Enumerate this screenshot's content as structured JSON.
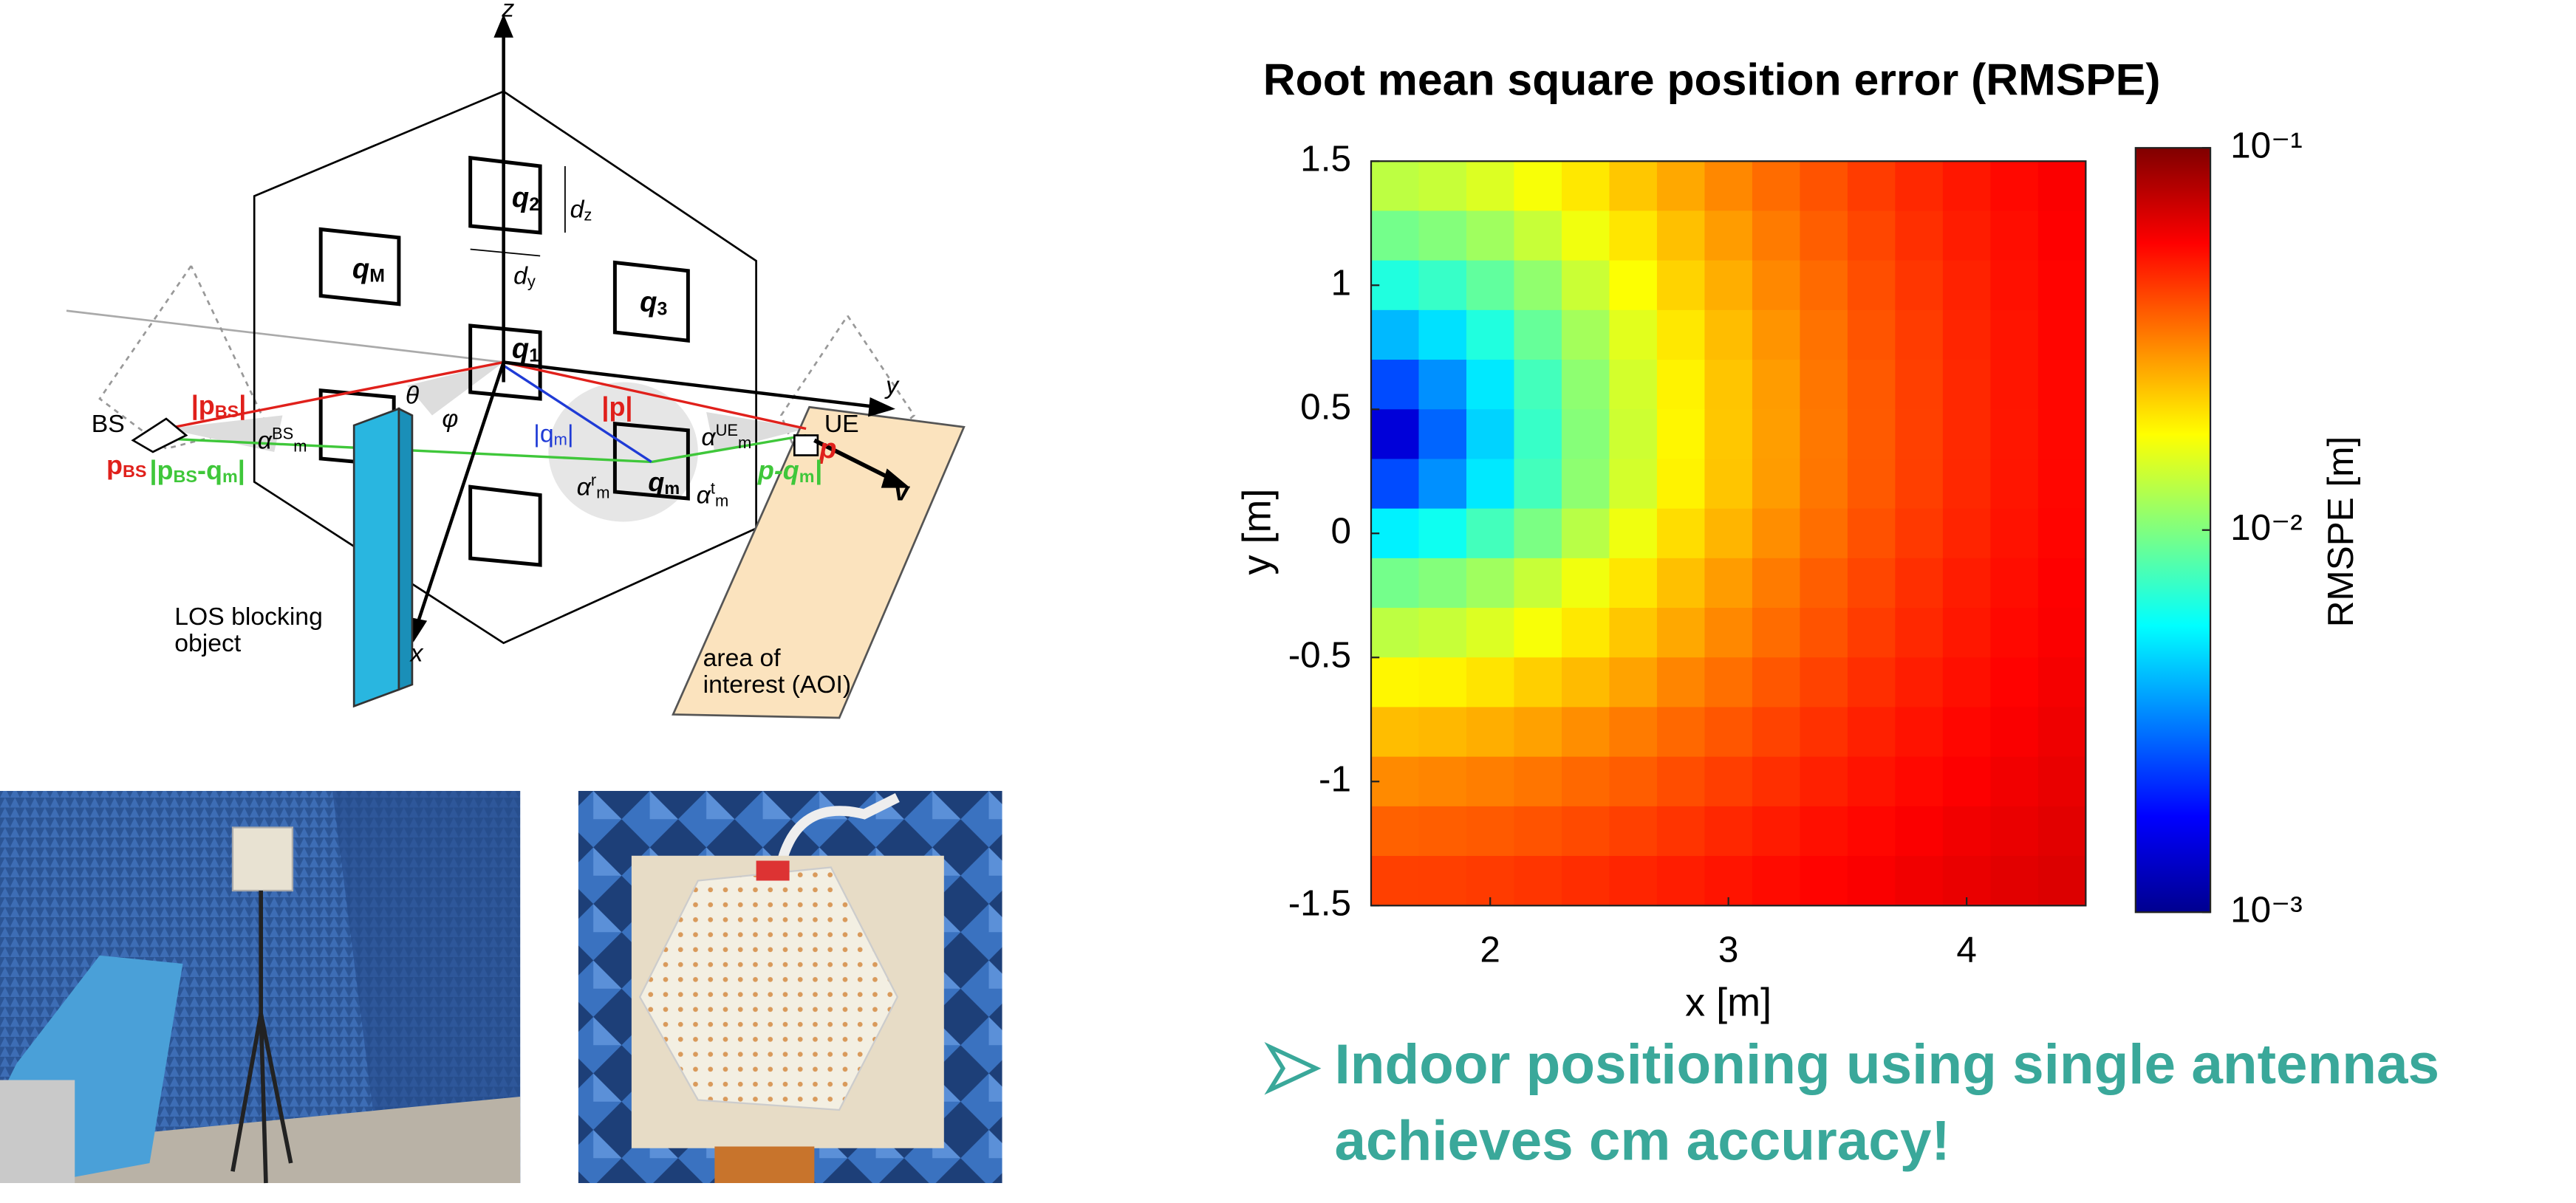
{
  "chart_data": {
    "type": "heatmap",
    "title": "Root mean square position error (RMSPE)",
    "xlabel": "x [m]",
    "ylabel": "y [m]",
    "colorbar_label": "RMSPE [m]",
    "colormap": "jet",
    "color_scale": "log",
    "x": [
      1.6,
      1.8,
      2.0,
      2.2,
      2.4,
      2.6,
      2.8,
      3.0,
      3.2,
      3.4,
      3.6,
      3.8,
      4.0,
      4.2,
      4.4
    ],
    "y": [
      1.4,
      1.2,
      1.0,
      0.8,
      0.6,
      0.4,
      0.2,
      0.0,
      -0.2,
      -0.4,
      -0.6,
      -0.8,
      -1.0,
      -1.2,
      -1.4
    ],
    "values": [
      [
        0.0132,
        0.0138,
        0.0152,
        0.0172,
        0.0197,
        0.0229,
        0.0263,
        0.0304,
        0.0346,
        0.0386,
        0.0428,
        0.047,
        0.0508,
        0.0542,
        0.0573
      ],
      [
        0.0095,
        0.0102,
        0.0116,
        0.0138,
        0.0167,
        0.0199,
        0.0236,
        0.0278,
        0.0323,
        0.0368,
        0.041,
        0.0455,
        0.0496,
        0.0531,
        0.0564
      ],
      [
        0.0065,
        0.0072,
        0.0087,
        0.0108,
        0.014,
        0.0176,
        0.0217,
        0.0256,
        0.0304,
        0.0348,
        0.0396,
        0.0441,
        0.0482,
        0.0522,
        0.0556
      ],
      [
        0.0041,
        0.0049,
        0.0065,
        0.0089,
        0.0118,
        0.0156,
        0.0197,
        0.024,
        0.0288,
        0.0336,
        0.0385,
        0.0428,
        0.0475,
        0.0514,
        0.055
      ],
      [
        0.0025,
        0.0034,
        0.0051,
        0.0076,
        0.0107,
        0.0146,
        0.0188,
        0.0231,
        0.0278,
        0.033,
        0.0377,
        0.0424,
        0.047,
        0.0511,
        0.0547
      ],
      [
        0.0015,
        0.0028,
        0.0046,
        0.0072,
        0.0103,
        0.0142,
        0.0184,
        0.0229,
        0.0275,
        0.0327,
        0.0375,
        0.0421,
        0.0468,
        0.051,
        0.0546
      ],
      [
        0.0025,
        0.0034,
        0.0051,
        0.0076,
        0.0107,
        0.0146,
        0.0188,
        0.0231,
        0.0278,
        0.033,
        0.0377,
        0.0424,
        0.047,
        0.0511,
        0.0547
      ],
      [
        0.0053,
        0.006,
        0.0076,
        0.0098,
        0.0129,
        0.0166,
        0.0207,
        0.0248,
        0.0296,
        0.0342,
        0.039,
        0.0434,
        0.0478,
        0.0518,
        0.0553
      ],
      [
        0.0095,
        0.0102,
        0.0116,
        0.0138,
        0.0167,
        0.0199,
        0.0236,
        0.0278,
        0.0323,
        0.0368,
        0.041,
        0.0455,
        0.0496,
        0.0531,
        0.0564
      ],
      [
        0.0132,
        0.0138,
        0.0152,
        0.0172,
        0.0197,
        0.0229,
        0.0263,
        0.0304,
        0.0346,
        0.0386,
        0.0428,
        0.047,
        0.0508,
        0.0542,
        0.0573
      ],
      [
        0.0184,
        0.0188,
        0.0201,
        0.0221,
        0.0242,
        0.027,
        0.0308,
        0.0341,
        0.038,
        0.0417,
        0.0457,
        0.0493,
        0.0526,
        0.0558,
        0.0588
      ],
      [
        0.024,
        0.0245,
        0.0256,
        0.0272,
        0.0296,
        0.0323,
        0.0351,
        0.0382,
        0.0415,
        0.045,
        0.0487,
        0.0518,
        0.0547,
        0.0575,
        0.0604
      ],
      [
        0.0302,
        0.0308,
        0.0318,
        0.0332,
        0.0351,
        0.037,
        0.0398,
        0.0426,
        0.0455,
        0.0487,
        0.0517,
        0.0542,
        0.0568,
        0.0595,
        0.062
      ],
      [
        0.0363,
        0.0368,
        0.0375,
        0.0386,
        0.0403,
        0.0421,
        0.0445,
        0.0472,
        0.0498,
        0.0526,
        0.0547,
        0.0572,
        0.0597,
        0.0618,
        0.064
      ],
      [
        0.0421,
        0.0424,
        0.0431,
        0.0443,
        0.0459,
        0.0475,
        0.0493,
        0.0514,
        0.0536,
        0.0556,
        0.0576,
        0.0598,
        0.0618,
        0.064,
        0.066
      ]
    ],
    "xlim": [
      1.5,
      4.5
    ],
    "ylim": [
      -1.5,
      1.5
    ],
    "xticks": [
      2,
      3,
      4
    ],
    "yticks": [
      -1.5,
      -1,
      -0.5,
      0,
      0.5,
      1,
      1.5
    ],
    "clim": [
      0.001,
      0.1
    ],
    "cticks": [
      {
        "value": 0.1,
        "label": "10⁻¹"
      },
      {
        "value": 0.01,
        "label": "10⁻²"
      },
      {
        "value": 0.001,
        "label": "10⁻³"
      }
    ]
  },
  "diagram": {
    "labels": [
      "z",
      "y",
      "x",
      [
        {
          "text": "q"
        },
        {
          "sub": "2"
        }
      ],
      [
        {
          "text": "d"
        },
        {
          "sub": "z"
        }
      ],
      [
        {
          "text": "d"
        },
        {
          "sub": "y"
        }
      ],
      [
        {
          "text": "q"
        },
        {
          "sub": "M"
        }
      ],
      [
        {
          "text": "q"
        },
        {
          "sub": "3"
        }
      ],
      [
        {
          "text": "q"
        },
        {
          "sub": "1"
        }
      ],
      "BS",
      "UE",
      [
        {
          "text": "|p"
        },
        {
          "sub": "BS"
        },
        {
          "text": "|"
        }
      ],
      [
        {
          "text": "p"
        },
        {
          "sub": "BS"
        }
      ],
      [
        {
          "text": "|p"
        },
        {
          "sub": "BS"
        },
        {
          "text": "-q"
        },
        {
          "sub": "m"
        },
        {
          "text": "|"
        }
      ],
      [
        {
          "text": "|q"
        },
        {
          "sub": "m"
        },
        {
          "text": "|"
        }
      ],
      "|p|",
      "p",
      [
        {
          "text": "p-q"
        },
        {
          "sub": "m"
        },
        {
          "text": "|"
        }
      ],
      "v",
      "θ",
      "φ",
      [
        {
          "text": "α"
        },
        {
          "sup": "BS"
        },
        {
          "sub": "m"
        }
      ],
      [
        {
          "text": "α"
        },
        {
          "sup": "UE"
        },
        {
          "sub": "m"
        }
      ],
      [
        {
          "text": "α"
        },
        {
          "sup": "r"
        },
        {
          "sub": "m"
        }
      ],
      [
        {
          "text": "α"
        },
        {
          "sup": "t"
        },
        {
          "sub": "m"
        }
      ],
      [
        {
          "text": "q"
        },
        {
          "sub": "m"
        }
      ]
    ],
    "blocking_object": [
      "LOS blocking",
      "object"
    ],
    "aoi": [
      "area of",
      "interest (AOI)"
    ]
  },
  "bullet": [
    "Indoor positioning using single antennas",
    "achieves cm accuracy!"
  ]
}
